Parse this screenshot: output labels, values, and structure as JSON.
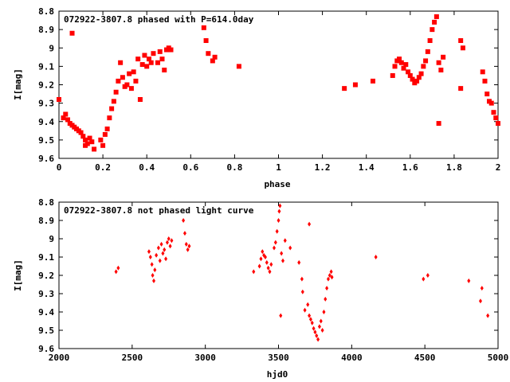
{
  "chart_data": [
    {
      "type": "scatter",
      "title": "072922-3807.8 phased with P=614.0day",
      "xlabel": "phase",
      "ylabel": "I[mag]",
      "xlim": [
        0,
        2
      ],
      "ylim": [
        8.8,
        9.6
      ],
      "y_inverted": true,
      "x_ticks": [
        0,
        0.2,
        0.4,
        0.6,
        0.8,
        1,
        1.2,
        1.4,
        1.6,
        1.8,
        2
      ],
      "x_tick_labels": [
        "0",
        "0.2",
        "0.4",
        "0.6",
        "0.8",
        "1",
        "1.2",
        "1.4",
        "1.6",
        "1.8",
        "2"
      ],
      "y_ticks": [
        8.8,
        8.9,
        9.0,
        9.1,
        9.2,
        9.3,
        9.4,
        9.5,
        9.6
      ],
      "y_tick_labels": [
        "8.8",
        "8.9",
        "9",
        "9.1",
        "9.2",
        "9.3",
        "9.4",
        "9.5",
        "9.6"
      ],
      "color": "#ff0000",
      "grid": false,
      "legend": "none",
      "series": [
        {
          "points": [
            [
              0.0,
              9.28
            ],
            [
              0.02,
              9.38
            ],
            [
              0.03,
              9.36
            ],
            [
              0.04,
              9.39
            ],
            [
              0.05,
              9.41
            ],
            [
              0.06,
              8.92
            ],
            [
              0.06,
              9.42
            ],
            [
              0.07,
              9.43
            ],
            [
              0.08,
              9.44
            ],
            [
              0.09,
              9.45
            ],
            [
              0.1,
              9.46
            ],
            [
              0.11,
              9.48
            ],
            [
              0.12,
              9.5
            ],
            [
              0.12,
              9.53
            ],
            [
              0.13,
              9.52
            ],
            [
              0.14,
              9.49
            ],
            [
              0.15,
              9.51
            ],
            [
              0.16,
              9.55
            ],
            [
              0.19,
              9.5
            ],
            [
              0.2,
              9.53
            ],
            [
              0.21,
              9.47
            ],
            [
              0.22,
              9.44
            ],
            [
              0.23,
              9.38
            ],
            [
              0.24,
              9.33
            ],
            [
              0.25,
              9.29
            ],
            [
              0.26,
              9.24
            ],
            [
              0.27,
              9.18
            ],
            [
              0.28,
              9.08
            ],
            [
              0.29,
              9.16
            ],
            [
              0.3,
              9.21
            ],
            [
              0.31,
              9.2
            ],
            [
              0.32,
              9.14
            ],
            [
              0.33,
              9.22
            ],
            [
              0.34,
              9.13
            ],
            [
              0.35,
              9.18
            ],
            [
              0.36,
              9.06
            ],
            [
              0.37,
              9.28
            ],
            [
              0.38,
              9.09
            ],
            [
              0.39,
              9.04
            ],
            [
              0.4,
              9.1
            ],
            [
              0.41,
              9.06
            ],
            [
              0.42,
              9.08
            ],
            [
              0.43,
              9.03
            ],
            [
              0.45,
              9.08
            ],
            [
              0.46,
              9.02
            ],
            [
              0.47,
              9.06
            ],
            [
              0.48,
              9.12
            ],
            [
              0.49,
              9.01
            ],
            [
              0.5,
              9.0
            ],
            [
              0.51,
              9.01
            ],
            [
              0.66,
              8.89
            ],
            [
              0.67,
              8.96
            ],
            [
              0.68,
              9.03
            ],
            [
              0.7,
              9.07
            ],
            [
              0.71,
              9.05
            ],
            [
              0.82,
              9.1
            ],
            [
              1.3,
              9.22
            ],
            [
              1.35,
              9.2
            ],
            [
              1.43,
              9.18
            ],
            [
              1.52,
              9.15
            ],
            [
              1.53,
              9.1
            ],
            [
              1.54,
              9.07
            ],
            [
              1.55,
              9.06
            ],
            [
              1.56,
              9.08
            ],
            [
              1.57,
              9.11
            ],
            [
              1.58,
              9.09
            ],
            [
              1.59,
              9.13
            ],
            [
              1.6,
              9.15
            ],
            [
              1.61,
              9.17
            ],
            [
              1.62,
              9.19
            ],
            [
              1.63,
              9.18
            ],
            [
              1.64,
              9.16
            ],
            [
              1.65,
              9.14
            ],
            [
              1.66,
              9.1
            ],
            [
              1.67,
              9.07
            ],
            [
              1.68,
              9.02
            ],
            [
              1.69,
              8.96
            ],
            [
              1.7,
              8.9
            ],
            [
              1.71,
              8.86
            ],
            [
              1.72,
              8.83
            ],
            [
              1.73,
              9.08
            ],
            [
              1.73,
              9.41
            ],
            [
              1.74,
              9.12
            ],
            [
              1.75,
              9.05
            ],
            [
              1.83,
              8.96
            ],
            [
              1.84,
              9.0
            ],
            [
              1.83,
              9.22
            ],
            [
              1.93,
              9.13
            ],
            [
              1.94,
              9.18
            ],
            [
              1.95,
              9.25
            ],
            [
              1.96,
              9.29
            ],
            [
              1.97,
              9.3
            ],
            [
              1.98,
              9.35
            ],
            [
              1.99,
              9.38
            ],
            [
              2.0,
              9.41
            ]
          ]
        }
      ]
    },
    {
      "type": "scatter",
      "title": "072922-3807.8 not phased light curve",
      "xlabel": "hjd0",
      "ylabel": "I[mag]",
      "xlim": [
        2000,
        5000
      ],
      "ylim": [
        8.8,
        9.6
      ],
      "y_inverted": true,
      "x_ticks": [
        2000,
        2500,
        3000,
        3500,
        4000,
        4500,
        5000
      ],
      "x_tick_labels": [
        "2000",
        "2500",
        "3000",
        "3500",
        "4000",
        "4500",
        "5000"
      ],
      "y_ticks": [
        8.8,
        8.9,
        9.0,
        9.1,
        9.2,
        9.3,
        9.4,
        9.5,
        9.6
      ],
      "y_tick_labels": [
        "8.8",
        "8.9",
        "9",
        "9.1",
        "9.2",
        "9.3",
        "9.4",
        "9.5",
        "9.6"
      ],
      "color": "#ff0000",
      "grid": false,
      "legend": "none",
      "series": [
        {
          "points": [
            [
              2390,
              9.18
            ],
            [
              2405,
              9.16
            ],
            [
              2615,
              9.07
            ],
            [
              2625,
              9.1
            ],
            [
              2635,
              9.14
            ],
            [
              2640,
              9.2
            ],
            [
              2648,
              9.23
            ],
            [
              2655,
              9.17
            ],
            [
              2665,
              9.09
            ],
            [
              2680,
              9.05
            ],
            [
              2690,
              9.12
            ],
            [
              2700,
              9.03
            ],
            [
              2710,
              9.08
            ],
            [
              2720,
              9.06
            ],
            [
              2730,
              9.11
            ],
            [
              2740,
              9.02
            ],
            [
              2750,
              9.0
            ],
            [
              2760,
              9.04
            ],
            [
              2770,
              9.01
            ],
            [
              2850,
              8.9
            ],
            [
              2860,
              8.97
            ],
            [
              2870,
              9.03
            ],
            [
              2880,
              9.06
            ],
            [
              2890,
              9.04
            ],
            [
              3330,
              9.18
            ],
            [
              3370,
              9.15
            ],
            [
              3380,
              9.11
            ],
            [
              3390,
              9.07
            ],
            [
              3400,
              9.09
            ],
            [
              3410,
              9.1
            ],
            [
              3420,
              9.13
            ],
            [
              3430,
              9.16
            ],
            [
              3440,
              9.18
            ],
            [
              3450,
              9.14
            ],
            [
              3470,
              9.05
            ],
            [
              3480,
              9.02
            ],
            [
              3490,
              8.96
            ],
            [
              3500,
              8.9
            ],
            [
              3505,
              8.85
            ],
            [
              3510,
              8.82
            ],
            [
              3515,
              9.42
            ],
            [
              3520,
              9.08
            ],
            [
              3530,
              9.12
            ],
            [
              3545,
              9.01
            ],
            [
              3580,
              9.05
            ],
            [
              3640,
              9.13
            ],
            [
              3660,
              9.22
            ],
            [
              3665,
              9.29
            ],
            [
              3680,
              9.39
            ],
            [
              3700,
              9.36
            ],
            [
              3710,
              9.42
            ],
            [
              3720,
              9.44
            ],
            [
              3730,
              9.46
            ],
            [
              3740,
              9.49
            ],
            [
              3750,
              9.51
            ],
            [
              3760,
              9.53
            ],
            [
              3770,
              9.55
            ],
            [
              3780,
              9.48
            ],
            [
              3790,
              9.45
            ],
            [
              3800,
              9.5
            ],
            [
              3810,
              9.4
            ],
            [
              3820,
              9.33
            ],
            [
              3830,
              9.27
            ],
            [
              3840,
              9.22
            ],
            [
              3850,
              9.2
            ],
            [
              3860,
              9.18
            ],
            [
              3865,
              9.21
            ],
            [
              3710,
              8.92
            ],
            [
              4165,
              9.1
            ],
            [
              4490,
              9.22
            ],
            [
              4520,
              9.2
            ],
            [
              4800,
              9.23
            ],
            [
              4890,
              9.27
            ],
            [
              4880,
              9.34
            ],
            [
              4930,
              9.42
            ]
          ]
        }
      ]
    }
  ]
}
